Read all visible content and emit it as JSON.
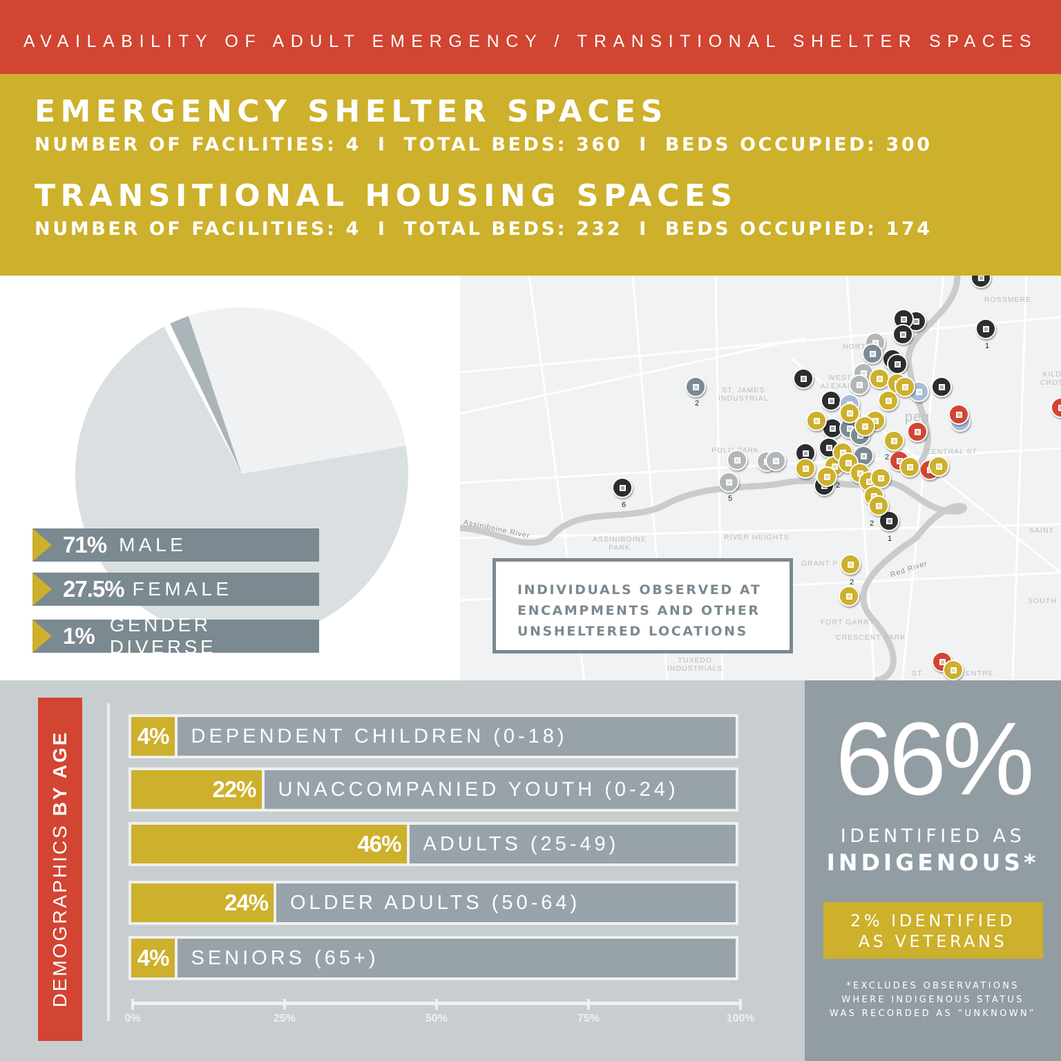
{
  "header": {
    "title": "AVAILABILITY OF ADULT EMERGENCY / TRANSITIONAL SHELTER SPACES"
  },
  "emergency": {
    "title": "EMERGENCY SHELTER SPACES",
    "facilities": "NUMBER OF FACILITIES: 4",
    "total_beds": "TOTAL BEDS: 360",
    "occupied": "BEDS OCCUPIED: 300"
  },
  "transitional": {
    "title": "TRANSITIONAL HOUSING SPACES",
    "facilities": "NUMBER OF FACILITIES: 4",
    "total_beds": "TOTAL BEDS: 232",
    "occupied": "BEDS OCCUPIED: 174"
  },
  "separator": "I",
  "colors": {
    "red": "#d14532",
    "gold": "#cdb02b",
    "slate": "#7b8990",
    "gray_panel": "#929ca3",
    "bottom_bg": "#c8cdd0"
  },
  "map": {
    "box_lines": [
      "INDIVIDUALS OBSERVED AT",
      "ENCAMPMENTS AND OTHER",
      "UNSHELTERED LOCATIONS"
    ],
    "place_names": [
      "ROSSMERE",
      "ST. JAMES\nINDUSTRIAL",
      "POLO PARK",
      "RIVER HEIGHTS",
      "ASSINIBOINE\nPARK",
      "GRANT P",
      "FORT GARRY",
      "CRESCENT PARK",
      "TUXEDO\nINDUSTRIALS",
      "CENTRAL ST",
      "WEST\nALEXAND",
      "NORTH",
      "SAINT",
      "KILD\nCROS",
      "SOUTH",
      "Assiniboine River",
      "Red River",
      "ST.",
      "ENTRE",
      "peg"
    ],
    "cluster_counts": [
      "2",
      "6",
      "5",
      "1",
      "2",
      "2",
      "2",
      "1",
      "2"
    ],
    "marker_colors": {
      "black": "#2b2d2f",
      "gold": "#cdb02b",
      "red": "#d14532",
      "gray": "#b3b6b8",
      "slate": "#7b8a95",
      "light_blue": "#a9bbd8"
    }
  },
  "chart_data": [
    {
      "type": "pie",
      "slices": [
        {
          "label": "MALE",
          "pct_label": "71%",
          "value": 71,
          "color": "#dadfe2"
        },
        {
          "label": "FEMALE",
          "pct_label": "27.5%",
          "value": 27.5,
          "color": "#eff1f3"
        },
        {
          "label": "GENDER DIVERSE",
          "pct_label": "1%",
          "value": 1,
          "color": "#aab4b9"
        }
      ]
    },
    {
      "type": "bar",
      "title": "DEMOGRAPHICS BY AGE",
      "title_plain": "DEMOGRAPHICS",
      "title_bold": "BY AGE",
      "categories": [
        "DEPENDENT CHILDREN (0-18)",
        "UNACCOMPANIED YOUTH (0-24)",
        "ADULTS (25-49)",
        "OLDER ADULTS (50-64)",
        "SENIORS (65+)"
      ],
      "values": [
        4,
        22,
        46,
        24,
        4
      ],
      "value_labels": [
        "4%",
        "22%",
        "46%",
        "24%",
        "4%"
      ],
      "xlim": [
        0,
        100
      ],
      "x_ticks": [
        "0%",
        "25%",
        "50%",
        "75%",
        "100%"
      ]
    }
  ],
  "indigenous": {
    "value": "66%",
    "line1": "IDENTIFIED AS",
    "line2": "INDIGENOUS*"
  },
  "veterans": {
    "line1": "2% IDENTIFIED",
    "line2": "AS VETERANS"
  },
  "footnote": [
    "*EXCLUDES OBSERVATIONS",
    "WHERE INDIGENOUS STATUS",
    "WAS RECORDED AS “UNKNOWN”"
  ]
}
